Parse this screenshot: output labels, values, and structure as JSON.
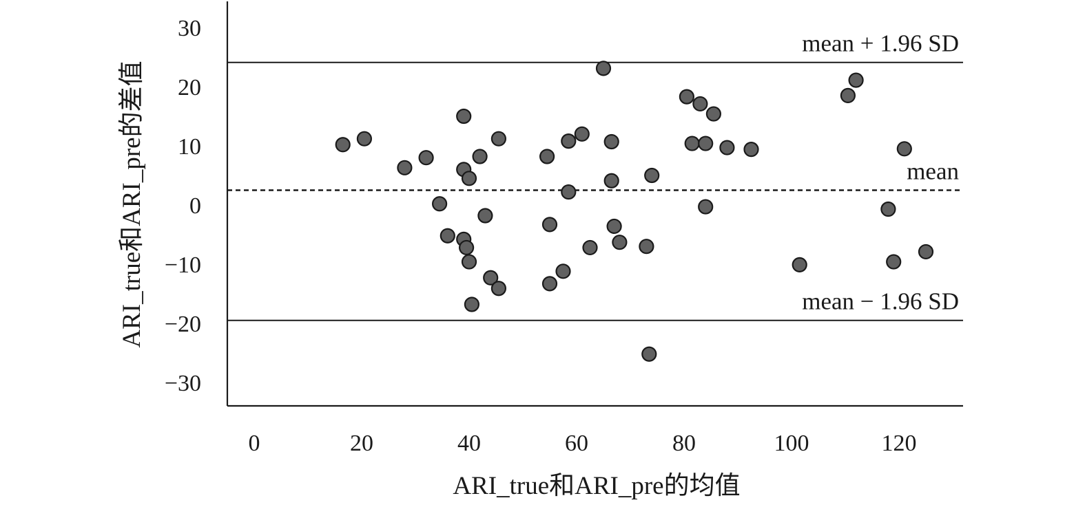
{
  "chart_data": {
    "type": "scatter",
    "xlabel": "ARI_true和ARI_pre的均值",
    "ylabel": "ARI_true和ARI_pre的差值",
    "xlim": [
      -5,
      132
    ],
    "ylim": [
      -34,
      34
    ],
    "x_ticks": [
      "0",
      "20",
      "40",
      "60",
      "80",
      "100",
      "120"
    ],
    "x_tick_values": [
      0,
      20,
      40,
      60,
      80,
      100,
      120
    ],
    "y_ticks": [
      "30",
      "20",
      "10",
      "0",
      "−10",
      "−20",
      "−30"
    ],
    "y_tick_values": [
      30,
      20,
      10,
      0,
      -10,
      -20,
      -30
    ],
    "grid": false,
    "reference_lines": [
      {
        "label": "mean + 1.96 SD",
        "y": 24.1,
        "style": "solid"
      },
      {
        "label": "mean",
        "y": 2.5,
        "style": "dashed"
      },
      {
        "label": "mean − 1.96 SD",
        "y": -19.5,
        "style": "solid"
      }
    ],
    "points": [
      {
        "x": 16.5,
        "y": 10.2
      },
      {
        "x": 20.5,
        "y": 11.2
      },
      {
        "x": 28.0,
        "y": 6.3
      },
      {
        "x": 32.0,
        "y": 8.0
      },
      {
        "x": 34.5,
        "y": 0.2
      },
      {
        "x": 36.0,
        "y": -5.2
      },
      {
        "x": 39.0,
        "y": 15.0
      },
      {
        "x": 39.0,
        "y": 6.0
      },
      {
        "x": 39.0,
        "y": -5.8
      },
      {
        "x": 39.5,
        "y": -7.2
      },
      {
        "x": 40.0,
        "y": 4.5
      },
      {
        "x": 40.0,
        "y": -9.6
      },
      {
        "x": 40.5,
        "y": -16.8
      },
      {
        "x": 42.0,
        "y": 8.2
      },
      {
        "x": 43.0,
        "y": -1.8
      },
      {
        "x": 44.0,
        "y": -12.3
      },
      {
        "x": 45.5,
        "y": 11.2
      },
      {
        "x": 45.5,
        "y": -14.1
      },
      {
        "x": 54.5,
        "y": 8.2
      },
      {
        "x": 55.0,
        "y": -3.3
      },
      {
        "x": 55.0,
        "y": -13.3
      },
      {
        "x": 57.5,
        "y": -11.2
      },
      {
        "x": 58.5,
        "y": 10.8
      },
      {
        "x": 58.5,
        "y": 2.2
      },
      {
        "x": 61.0,
        "y": 12.0
      },
      {
        "x": 62.5,
        "y": -7.2
      },
      {
        "x": 65.0,
        "y": 23.1
      },
      {
        "x": 66.5,
        "y": 10.7
      },
      {
        "x": 66.5,
        "y": 4.1
      },
      {
        "x": 67.0,
        "y": -3.6
      },
      {
        "x": 68.0,
        "y": -6.3
      },
      {
        "x": 73.0,
        "y": -7.0
      },
      {
        "x": 74.0,
        "y": 5.0
      },
      {
        "x": 73.5,
        "y": -25.2
      },
      {
        "x": 80.5,
        "y": 18.3
      },
      {
        "x": 81.5,
        "y": 10.4
      },
      {
        "x": 83.0,
        "y": 17.1
      },
      {
        "x": 84.0,
        "y": 10.4
      },
      {
        "x": 84.0,
        "y": -0.3
      },
      {
        "x": 85.5,
        "y": 15.4
      },
      {
        "x": 88.0,
        "y": 9.7
      },
      {
        "x": 92.5,
        "y": 9.4
      },
      {
        "x": 101.5,
        "y": -10.1
      },
      {
        "x": 110.5,
        "y": 18.5
      },
      {
        "x": 112.0,
        "y": 21.1
      },
      {
        "x": 118.0,
        "y": -0.7
      },
      {
        "x": 119.0,
        "y": -9.6
      },
      {
        "x": 121.0,
        "y": 9.5
      },
      {
        "x": 125.0,
        "y": -7.9
      }
    ]
  }
}
